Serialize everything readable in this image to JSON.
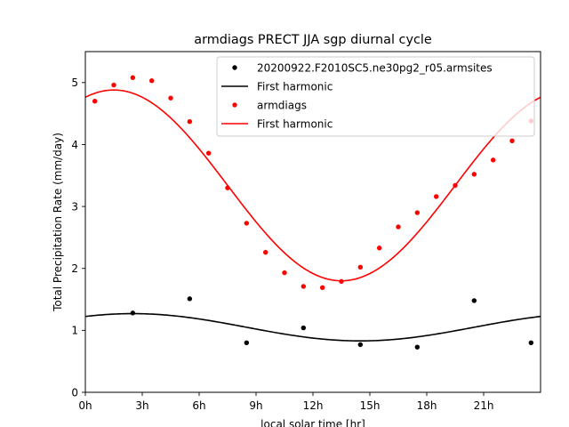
{
  "chart_data": {
    "type": "scatter",
    "title": "armdiags PRECT JJA sgp diurnal cycle",
    "xlabel": "local solar time [hr]",
    "ylabel": "Total Precipitation Rate (mm/day)",
    "xlim": [
      0,
      24
    ],
    "ylim": [
      0,
      5.5
    ],
    "x_ticks": [
      0,
      3,
      6,
      9,
      12,
      15,
      18,
      21
    ],
    "x_tick_labels": [
      "0h",
      "3h",
      "6h",
      "9h",
      "12h",
      "15h",
      "18h",
      "21h"
    ],
    "y_ticks": [
      0,
      1,
      2,
      3,
      4,
      5
    ],
    "y_tick_labels": [
      "0",
      "1",
      "2",
      "3",
      "4",
      "5"
    ],
    "legend_position": "top-right",
    "series": [
      {
        "name": "20200922.F2010SC5.ne30pg2_r05.armsites",
        "kind": "points",
        "color": "#000000",
        "x": [
          2.5,
          5.5,
          8.5,
          11.5,
          14.5,
          17.5,
          20.5,
          23.5
        ],
        "y": [
          1.28,
          1.51,
          0.8,
          1.04,
          0.77,
          0.73,
          1.48,
          0.8
        ]
      },
      {
        "name": "First harmonic",
        "kind": "harmonic",
        "color": "#000000",
        "mean": 1.05,
        "amplitude": 0.22,
        "peak_hour": 2.5
      },
      {
        "name": "armdiags",
        "kind": "points",
        "color": "#ff0000",
        "x": [
          0.5,
          1.5,
          2.5,
          3.5,
          4.5,
          5.5,
          6.5,
          7.5,
          8.5,
          9.5,
          10.5,
          11.5,
          12.5,
          13.5,
          14.5,
          15.5,
          16.5,
          17.5,
          18.5,
          19.5,
          20.5,
          21.5,
          22.5,
          23.5
        ],
        "y": [
          4.7,
          4.96,
          5.08,
          5.03,
          4.75,
          4.37,
          3.86,
          3.3,
          2.73,
          2.26,
          1.93,
          1.71,
          1.69,
          1.79,
          2.02,
          2.33,
          2.67,
          2.9,
          3.16,
          3.34,
          3.52,
          3.75,
          4.06,
          4.38
        ]
      },
      {
        "name": "First harmonic",
        "kind": "harmonic",
        "color": "#ff0000",
        "mean": 3.34,
        "amplitude": 1.54,
        "peak_hour": 1.5
      }
    ]
  }
}
